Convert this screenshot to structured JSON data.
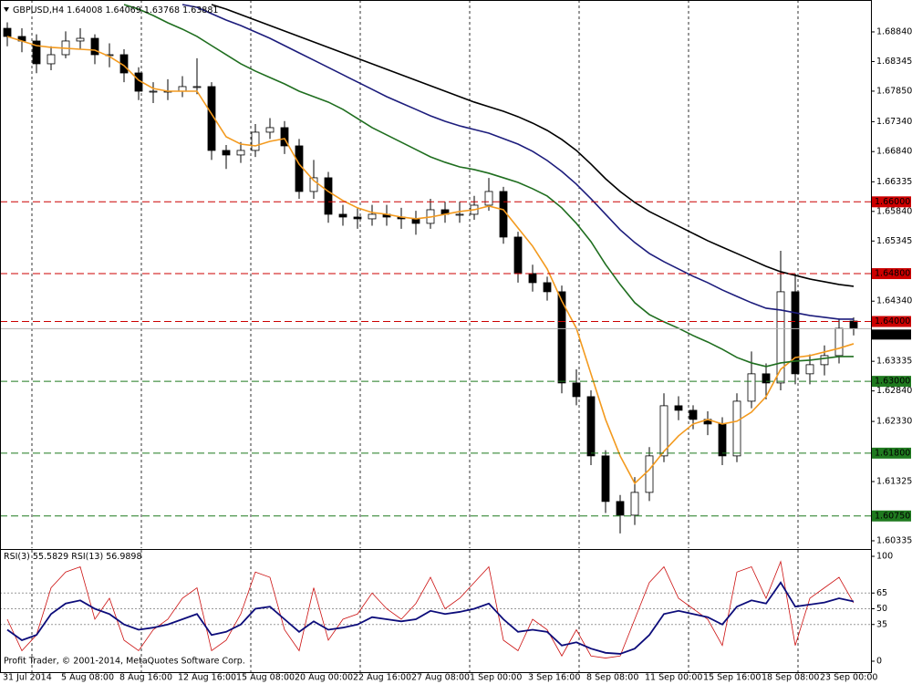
{
  "chart_data": [
    {
      "type": "candlestick",
      "title": "GBPUSD,H4",
      "categories": [
        "31 Jul 2014",
        null,
        null,
        null,
        "5 Aug 08:00",
        null,
        null,
        null,
        "8 Aug 16:00",
        null,
        null,
        null,
        "12 Aug 16:00",
        null,
        null,
        null,
        "15 Aug 08:00",
        null,
        null,
        null,
        "20 Aug 00:00",
        null,
        null,
        null,
        "22 Aug 16:00",
        null,
        null,
        null,
        "27 Aug 08:00",
        null,
        null,
        null,
        "1 Sep 00:00",
        null,
        null,
        null,
        "3 Sep 16:00",
        null,
        null,
        null,
        "8 Sep 08:00",
        null,
        null,
        null,
        "11 Sep 00:00",
        null,
        null,
        null,
        "15 Sep 16:00",
        null,
        null,
        null,
        "18 Sep 08:00",
        null,
        null,
        null,
        "23 Sep 00:00",
        null,
        null
      ],
      "open": [
        1.689,
        1.68764,
        1.68688,
        1.68307,
        1.68459,
        1.68688,
        1.68733,
        1.68459,
        1.68459,
        1.68154,
        1.67849,
        1.67849,
        1.67849,
        1.67926,
        1.67926,
        1.66859,
        1.66783,
        1.66859,
        1.67164,
        1.6724,
        1.66935,
        1.66173,
        1.66402,
        1.65792,
        1.65746,
        1.65716,
        1.65792,
        1.65746,
        1.65716,
        1.6564,
        1.65868,
        1.65792,
        1.65792,
        1.65944,
        1.66173,
        1.65411,
        1.64802,
        1.64649,
        1.64497,
        1.62973,
        1.62744,
        1.61754,
        1.60992,
        1.60763,
        1.61144,
        1.61754,
        1.62592,
        1.62516,
        1.62364,
        1.62287,
        1.61754,
        1.62668,
        1.63126,
        1.62973,
        1.64497,
        1.63126,
        1.63278,
        1.6343,
        1.64008
      ],
      "high": [
        1.69,
        1.689,
        1.688,
        1.686,
        1.6885,
        1.689,
        1.688,
        1.6865,
        1.6855,
        1.6825,
        1.68,
        1.6805,
        1.681,
        1.684,
        1.68,
        1.6695,
        1.67,
        1.673,
        1.674,
        1.6735,
        1.6705,
        1.667,
        1.665,
        1.6595,
        1.659,
        1.6595,
        1.6595,
        1.659,
        1.6585,
        1.6605,
        1.66,
        1.66,
        1.661,
        1.664,
        1.6625,
        1.655,
        1.6495,
        1.6475,
        1.646,
        1.632,
        1.6285,
        1.6185,
        1.611,
        1.614,
        1.619,
        1.628,
        1.6275,
        1.626,
        1.625,
        1.624,
        1.628,
        1.635,
        1.633,
        1.65182,
        1.648,
        1.6345,
        1.636,
        1.6405,
        1.64069
      ],
      "low": [
        1.686,
        1.685,
        1.6815,
        1.682,
        1.684,
        1.6855,
        1.683,
        1.6825,
        1.68,
        1.677,
        1.6765,
        1.677,
        1.6775,
        1.678,
        1.667,
        1.6655,
        1.6665,
        1.6675,
        1.6705,
        1.668,
        1.6605,
        1.6605,
        1.6565,
        1.656,
        1.6555,
        1.656,
        1.656,
        1.6555,
        1.6545,
        1.6555,
        1.6565,
        1.6565,
        1.657,
        1.6585,
        1.653,
        1.6465,
        1.645,
        1.6435,
        1.628,
        1.626,
        1.616,
        1.608,
        1.60458,
        1.606,
        1.61,
        1.6165,
        1.6235,
        1.622,
        1.621,
        1.616,
        1.6165,
        1.6255,
        1.627,
        1.6285,
        1.6295,
        1.6295,
        1.631,
        1.633,
        1.63768
      ],
      "close": [
        1.68764,
        1.68688,
        1.68307,
        1.68459,
        1.68688,
        1.68733,
        1.68459,
        1.68459,
        1.68154,
        1.67849,
        1.67849,
        1.67849,
        1.67926,
        1.67926,
        1.66859,
        1.66783,
        1.66859,
        1.67164,
        1.6724,
        1.66935,
        1.66173,
        1.66402,
        1.65792,
        1.65746,
        1.65716,
        1.65792,
        1.65746,
        1.65716,
        1.6564,
        1.65868,
        1.65792,
        1.65792,
        1.65944,
        1.66173,
        1.65411,
        1.64802,
        1.64649,
        1.64497,
        1.62973,
        1.62744,
        1.61754,
        1.60992,
        1.60763,
        1.61144,
        1.61754,
        1.62592,
        1.62516,
        1.62364,
        1.62287,
        1.61754,
        1.62668,
        1.63126,
        1.62973,
        1.64497,
        1.63126,
        1.63278,
        1.6343,
        1.63887,
        1.63881
      ],
      "up_color": "#ffffff",
      "down_color": "#000000",
      "wick_color": "#000000",
      "series": [
        {
          "color": "#f39a1e",
          "values": [
            1.68764,
            1.68688,
            1.68611,
            1.68581,
            1.68566,
            1.6855,
            1.68535,
            1.68429,
            1.68276,
            1.68032,
            1.67895,
            1.67849,
            1.67849,
            1.67849,
            1.67468,
            1.67087,
            1.66965,
            1.66935,
            1.67011,
            1.67057,
            1.6663,
            1.66356,
            1.66173,
            1.66021,
            1.65899,
            1.65822,
            1.65792,
            1.65746,
            1.65716,
            1.65746,
            1.65792,
            1.65838,
            1.65868,
            1.65929,
            1.65868,
            1.65563,
            1.65259,
            1.64878,
            1.64344,
            1.63887,
            1.63125,
            1.62363,
            1.61753,
            1.61296,
            1.61525,
            1.6183,
            1.62089,
            1.62287,
            1.62363,
            1.62287,
            1.62333,
            1.62485,
            1.62744,
            1.63201,
            1.63399,
            1.6343,
            1.63491,
            1.63552,
            1.63628
          ]
        },
        {
          "color": "#1f6e1f",
          "values": [
            null,
            null,
            null,
            null,
            null,
            null,
            null,
            null,
            1.69297,
            1.69221,
            1.69114,
            1.68992,
            1.68886,
            1.68764,
            1.68611,
            1.68459,
            1.68307,
            1.68185,
            1.68078,
            1.67971,
            1.67849,
            1.67758,
            1.67667,
            1.67545,
            1.67392,
            1.6724,
            1.67118,
            1.66996,
            1.66874,
            1.66752,
            1.66661,
            1.66584,
            1.66539,
            1.66478,
            1.66402,
            1.66325,
            1.66219,
            1.66097,
            1.65899,
            1.6564,
            1.65335,
            1.64954,
            1.64619,
            1.64314,
            1.64116,
            1.63994,
            1.63887,
            1.63765,
            1.63658,
            1.63536,
            1.63399,
            1.63308,
            1.63247,
            1.63308,
            1.63338,
            1.63354,
            1.63384,
            1.63415,
            1.63415
          ]
        },
        {
          "color": "#1c1c7c",
          "values": [
            null,
            null,
            null,
            null,
            null,
            null,
            null,
            null,
            null,
            null,
            null,
            null,
            1.69297,
            1.69251,
            1.69145,
            1.69038,
            1.68947,
            1.6884,
            1.68733,
            1.68611,
            1.68489,
            1.68368,
            1.68246,
            1.68124,
            1.68002,
            1.6788,
            1.67758,
            1.67651,
            1.67545,
            1.67438,
            1.67346,
            1.6727,
            1.67209,
            1.67148,
            1.67057,
            1.66965,
            1.66844,
            1.66691,
            1.66508,
            1.66295,
            1.66051,
            1.65792,
            1.65533,
            1.6532,
            1.65137,
            1.65,
            1.64878,
            1.64756,
            1.64649,
            1.64527,
            1.6442,
            1.64314,
            1.64222,
            1.64192,
            1.64146,
            1.641,
            1.6407,
            1.64039,
            1.64039
          ]
        },
        {
          "color": "#000000",
          "values": [
            null,
            null,
            null,
            null,
            null,
            null,
            null,
            null,
            null,
            null,
            null,
            null,
            null,
            null,
            1.69297,
            1.69221,
            1.6913,
            1.69038,
            1.68947,
            1.68855,
            1.68764,
            1.68672,
            1.68581,
            1.68489,
            1.68398,
            1.68307,
            1.68215,
            1.68124,
            1.68032,
            1.67941,
            1.67849,
            1.67758,
            1.67667,
            1.6759,
            1.67514,
            1.67423,
            1.67316,
            1.67194,
            1.67042,
            1.66859,
            1.6663,
            1.66386,
            1.66173,
            1.6599,
            1.65838,
            1.65716,
            1.65594,
            1.65472,
            1.6535,
            1.65243,
            1.65137,
            1.6503,
            1.64923,
            1.64832,
            1.64771,
            1.6471,
            1.64664,
            1.64619,
            1.64588
          ]
        }
      ],
      "ylim": [
        1.60228,
        1.69297
      ],
      "yticks": [
        {
          "value": 1.6884,
          "label": "1.68840"
        },
        {
          "value": 1.68345,
          "label": "1.68345"
        },
        {
          "value": 1.6785,
          "label": "1.67850"
        },
        {
          "value": 1.6734,
          "label": "1.67340"
        },
        {
          "value": 1.6684,
          "label": "1.66840"
        },
        {
          "value": 1.66335,
          "label": "1.66335"
        },
        {
          "value": 1.6584,
          "label": "1.65840"
        },
        {
          "value": 1.65345,
          "label": "1.65345"
        },
        {
          "value": 1.6434,
          "label": "1.64340"
        },
        {
          "value": 1.63335,
          "label": "1.63335"
        },
        {
          "value": 1.6284,
          "label": "1.62840"
        },
        {
          "value": 1.6233,
          "label": "1.62330"
        },
        {
          "value": 1.61325,
          "label": "1.61325"
        },
        {
          "value": 1.60335,
          "label": "1.60335"
        }
      ],
      "levels": [
        {
          "value": 1.66,
          "label": "1.66000",
          "color": "#cc0000"
        },
        {
          "value": 1.648,
          "label": "1.64800",
          "color": "#cc0000"
        },
        {
          "value": 1.64,
          "label": "1.64000",
          "color": "#cc0000"
        },
        {
          "value": 1.63,
          "label": "1.63000",
          "color": "#1f7a1f"
        },
        {
          "value": 1.618,
          "label": "1.61800",
          "color": "#1f7a1f"
        },
        {
          "value": 1.6075,
          "label": "1.60750",
          "color": "#1f7a1f"
        }
      ]
    },
    {
      "type": "line",
      "series": [
        {
          "name": "RSI(3)",
          "color": "#cc1111",
          "values": [
            40,
            10,
            25,
            70,
            85,
            90,
            40,
            60,
            20,
            10,
            30,
            40,
            60,
            70,
            10,
            20,
            45,
            85,
            80,
            30,
            10,
            70,
            20,
            40,
            45,
            65,
            50,
            40,
            55,
            80,
            50,
            60,
            75,
            90,
            20,
            10,
            40,
            30,
            5,
            30,
            5,
            3,
            5,
            40,
            75,
            90,
            60,
            50,
            40,
            15,
            85,
            90,
            60,
            95,
            15,
            60,
            70,
            80,
            55.5829
          ]
        },
        {
          "name": "RSI(13)",
          "color": "#0c0c7a",
          "values": [
            30,
            20,
            25,
            45,
            55,
            58,
            50,
            45,
            35,
            30,
            32,
            35,
            40,
            45,
            25,
            28,
            35,
            50,
            52,
            40,
            28,
            38,
            30,
            32,
            35,
            42,
            40,
            38,
            40,
            48,
            45,
            47,
            50,
            55,
            40,
            28,
            30,
            28,
            15,
            18,
            12,
            8,
            7,
            12,
            25,
            45,
            48,
            45,
            42,
            35,
            52,
            58,
            55,
            75,
            52,
            54,
            56,
            60,
            56.9898
          ]
        }
      ],
      "ylim": [
        0,
        100
      ],
      "yticks": [
        100,
        65,
        50,
        35,
        0
      ],
      "levels": [
        65,
        50,
        35
      ]
    }
  ],
  "footer": "Profit Trader, © 2001-2014, MetaQuotes Software Corp."
}
